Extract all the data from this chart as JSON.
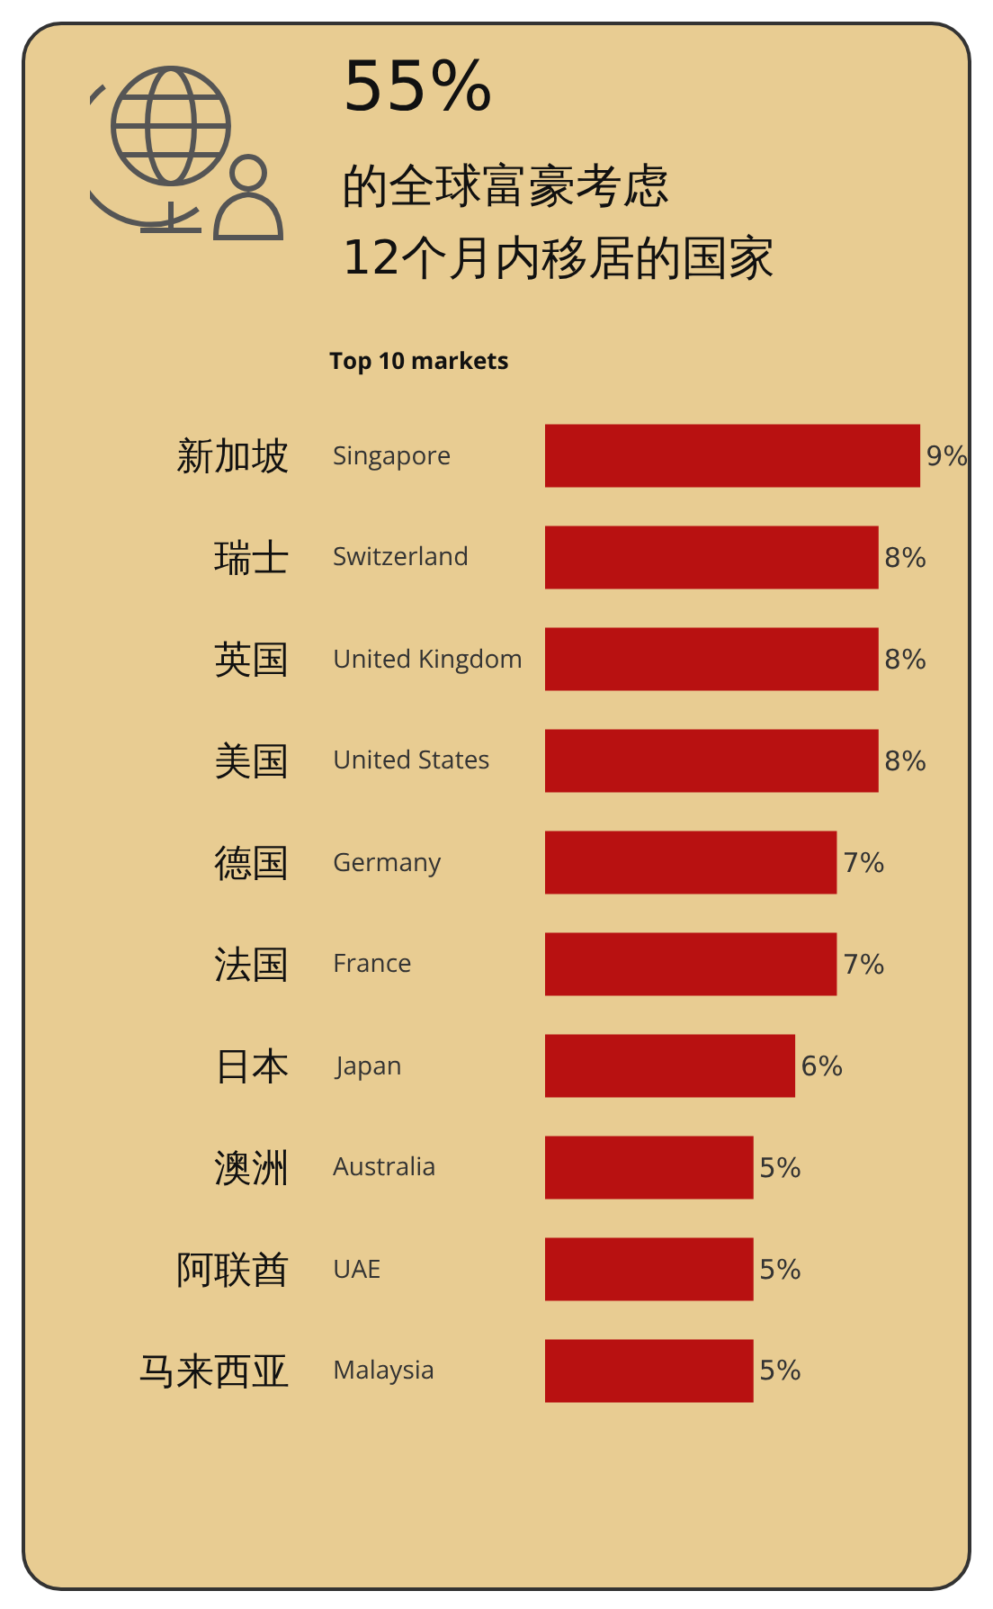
{
  "chart_data": {
    "type": "bar",
    "orientation": "horizontal",
    "title": "55%",
    "subtitle": "的全球富豪考虑\n12个月内移居的国家",
    "annotations": [
      "Top 10 markets"
    ],
    "categories": [
      "新加坡",
      "瑞士",
      "英国",
      "美国",
      "德国",
      "法国",
      "日本",
      "澳洲",
      "阿联酋",
      "马来西亚"
    ],
    "y2_categories": [
      "Singapore",
      "Switzerland",
      "United Kingdom",
      "United States",
      "Germany",
      "France",
      "Japan",
      "Australia",
      "UAE",
      "Malaysia"
    ],
    "values": [
      9,
      8,
      8,
      8,
      7,
      7,
      6,
      5,
      5,
      5
    ],
    "value_labels": [
      "9%",
      "8%",
      "8%",
      "8%",
      "7%",
      "7%",
      "6%",
      "5%",
      "5%",
      "5%"
    ],
    "color": "#b81111",
    "grid": false,
    "legend": false
  }
}
